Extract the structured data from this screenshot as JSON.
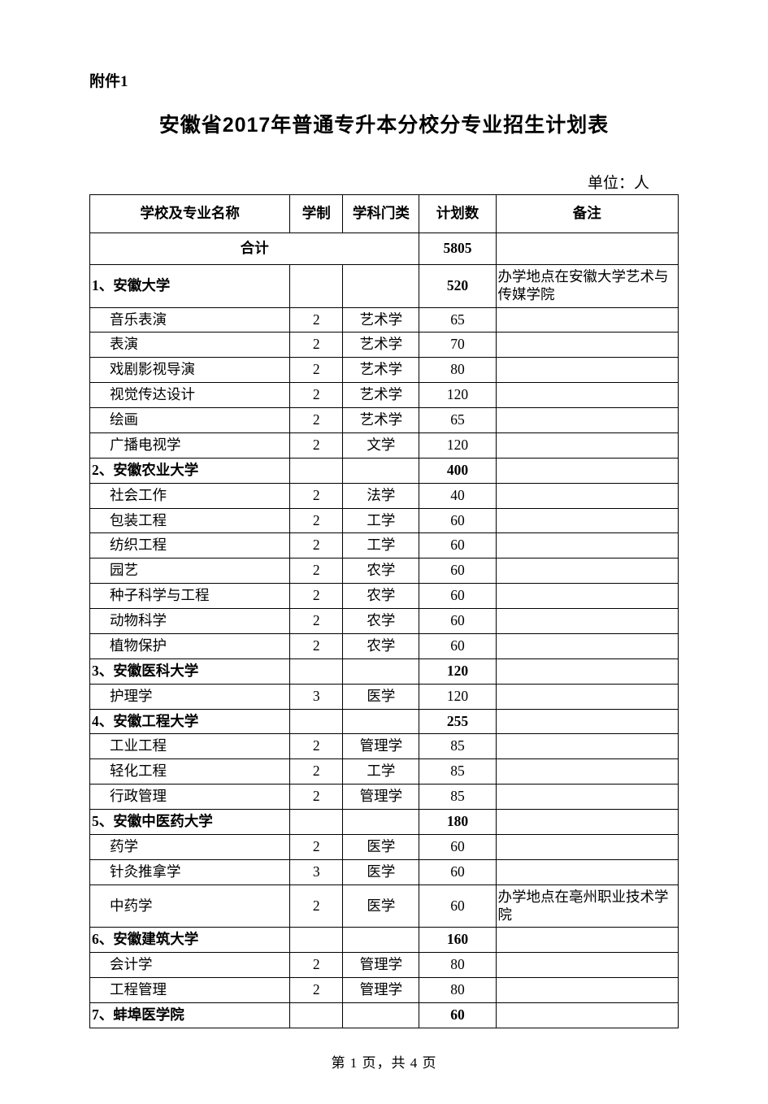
{
  "pre_title": "附件1",
  "title": "安徽省2017年普通专升本分校分专业招生计划表",
  "unit_label": "单位：人",
  "columns": {
    "c1": "学校及专业名称",
    "c2": "学制",
    "c3": "学科门类",
    "c4": "计划数",
    "c5": "备注"
  },
  "total_label": "合计",
  "total_value": "5805",
  "rows": [
    {
      "type": "school",
      "name": "1、安徽大学",
      "dur": "",
      "cat": "",
      "cnt": "520",
      "note": "办学地点在安徽大学艺术与传媒学院"
    },
    {
      "type": "major",
      "name": "音乐表演",
      "dur": "2",
      "cat": "艺术学",
      "cnt": "65",
      "note": ""
    },
    {
      "type": "major",
      "name": "表演",
      "dur": "2",
      "cat": "艺术学",
      "cnt": "70",
      "note": ""
    },
    {
      "type": "major",
      "name": "戏剧影视导演",
      "dur": "2",
      "cat": "艺术学",
      "cnt": "80",
      "note": ""
    },
    {
      "type": "major",
      "name": "视觉传达设计",
      "dur": "2",
      "cat": "艺术学",
      "cnt": "120",
      "note": ""
    },
    {
      "type": "major",
      "name": "绘画",
      "dur": "2",
      "cat": "艺术学",
      "cnt": "65",
      "note": ""
    },
    {
      "type": "major",
      "name": "广播电视学",
      "dur": "2",
      "cat": "文学",
      "cnt": "120",
      "note": ""
    },
    {
      "type": "school",
      "name": "2、安徽农业大学",
      "dur": "",
      "cat": "",
      "cnt": "400",
      "note": ""
    },
    {
      "type": "major",
      "name": "社会工作",
      "dur": "2",
      "cat": "法学",
      "cnt": "40",
      "note": ""
    },
    {
      "type": "major",
      "name": "包装工程",
      "dur": "2",
      "cat": "工学",
      "cnt": "60",
      "note": ""
    },
    {
      "type": "major",
      "name": "纺织工程",
      "dur": "2",
      "cat": "工学",
      "cnt": "60",
      "note": ""
    },
    {
      "type": "major",
      "name": "园艺",
      "dur": "2",
      "cat": "农学",
      "cnt": "60",
      "note": ""
    },
    {
      "type": "major",
      "name": "种子科学与工程",
      "dur": "2",
      "cat": "农学",
      "cnt": "60",
      "note": ""
    },
    {
      "type": "major",
      "name": "动物科学",
      "dur": "2",
      "cat": "农学",
      "cnt": "60",
      "note": ""
    },
    {
      "type": "major",
      "name": "植物保护",
      "dur": "2",
      "cat": "农学",
      "cnt": "60",
      "note": ""
    },
    {
      "type": "school",
      "name": "3、安徽医科大学",
      "dur": "",
      "cat": "",
      "cnt": "120",
      "note": ""
    },
    {
      "type": "major",
      "name": "护理学",
      "dur": "3",
      "cat": "医学",
      "cnt": "120",
      "note": ""
    },
    {
      "type": "school",
      "name": "4、安徽工程大学",
      "dur": "",
      "cat": "",
      "cnt": "255",
      "note": ""
    },
    {
      "type": "major",
      "name": "工业工程",
      "dur": "2",
      "cat": "管理学",
      "cnt": "85",
      "note": ""
    },
    {
      "type": "major",
      "name": "轻化工程",
      "dur": "2",
      "cat": "工学",
      "cnt": "85",
      "note": ""
    },
    {
      "type": "major",
      "name": "行政管理",
      "dur": "2",
      "cat": "管理学",
      "cnt": "85",
      "note": ""
    },
    {
      "type": "school",
      "name": "5、安徽中医药大学",
      "dur": "",
      "cat": "",
      "cnt": "180",
      "note": ""
    },
    {
      "type": "major",
      "name": "药学",
      "dur": "2",
      "cat": "医学",
      "cnt": "60",
      "note": ""
    },
    {
      "type": "major",
      "name": "针灸推拿学",
      "dur": "3",
      "cat": "医学",
      "cnt": "60",
      "note": ""
    },
    {
      "type": "major",
      "name": "中药学",
      "dur": "2",
      "cat": "医学",
      "cnt": "60",
      "note": "办学地点在亳州职业技术学院"
    },
    {
      "type": "school",
      "name": "6、安徽建筑大学",
      "dur": "",
      "cat": "",
      "cnt": "160",
      "note": ""
    },
    {
      "type": "major",
      "name": "会计学",
      "dur": "2",
      "cat": "管理学",
      "cnt": "80",
      "note": ""
    },
    {
      "type": "major",
      "name": "工程管理",
      "dur": "2",
      "cat": "管理学",
      "cnt": "80",
      "note": ""
    },
    {
      "type": "school",
      "name": "7、蚌埠医学院",
      "dur": "",
      "cat": "",
      "cnt": "60",
      "note": ""
    }
  ],
  "footer": "第 1 页，共 4 页"
}
